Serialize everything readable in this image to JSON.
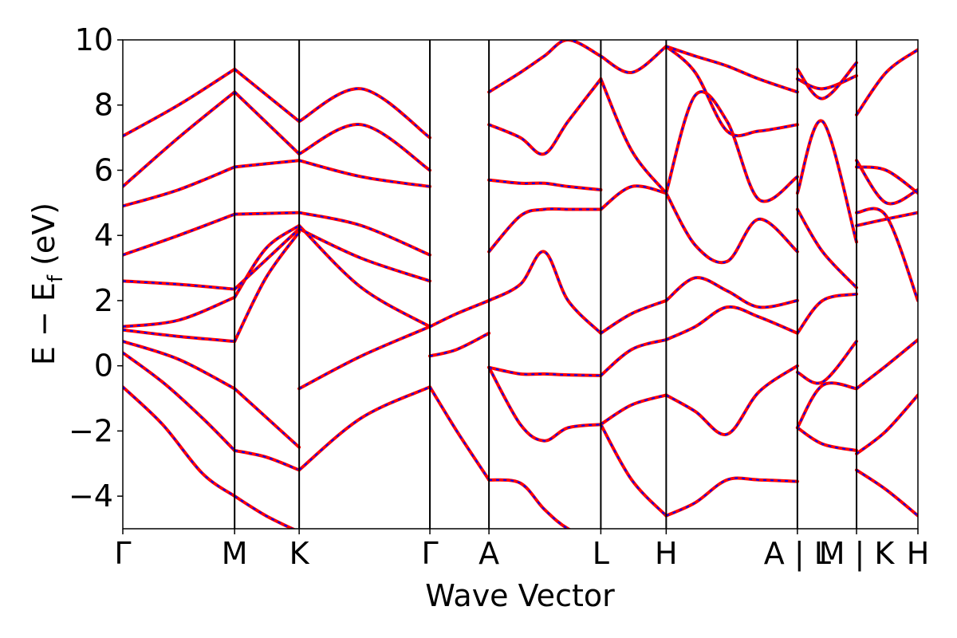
{
  "chart_data": {
    "type": "line",
    "title": "",
    "xlabel": "Wave Vector",
    "ylabel_parts": [
      "E",
      " − ",
      "E",
      "f",
      " (eV)"
    ],
    "ylim": [
      -5,
      10
    ],
    "yticks": [
      -4,
      -2,
      0,
      2,
      4,
      6,
      8,
      10
    ],
    "ytick_labels": [
      "−4",
      "−2",
      "0",
      "2",
      "4",
      "6",
      "8",
      "10"
    ],
    "xlim": [
      0,
      1
    ],
    "kpath": [
      {
        "label": "Γ",
        "x": 0.0
      },
      {
        "label": "M",
        "x": 0.1406
      },
      {
        "label": "K",
        "x": 0.2218
      },
      {
        "label": "Γ",
        "x": 0.3862
      },
      {
        "label": "A",
        "x": 0.4605
      },
      {
        "label": "L",
        "x": 0.6012
      },
      {
        "label": "H",
        "x": 0.6834
      },
      {
        "label": "A | L",
        "x": 0.8484
      },
      {
        "label": "M | K",
        "x": 0.9228
      },
      {
        "label": "H",
        "x": 1.0
      }
    ],
    "grid": false,
    "legend": "none",
    "colors": {
      "band_solid": "#ff0000",
      "band_dashed": "#0000ff",
      "segment_line": "#000000"
    },
    "series": [
      {
        "x": [
          0.0,
          0.05,
          0.1,
          0.1406
        ],
        "values": [
          -0.65,
          -1.8,
          -3.3,
          -4.0
        ]
      },
      {
        "x": [
          0.1406,
          0.18,
          0.2218
        ],
        "values": [
          -4.0,
          -4.6,
          -5.1
        ]
      },
      {
        "x": [
          0.0,
          0.05,
          0.1,
          0.1406
        ],
        "values": [
          0.4,
          -0.5,
          -1.6,
          -2.6
        ]
      },
      {
        "x": [
          0.1406,
          0.18,
          0.2218
        ],
        "values": [
          -2.6,
          -2.8,
          -3.2
        ]
      },
      {
        "x": [
          0.2218,
          0.3,
          0.3862
        ],
        "values": [
          -3.2,
          -1.6,
          -0.65
        ]
      },
      {
        "x": [
          0.0,
          0.07,
          0.1406
        ],
        "values": [
          0.75,
          0.2,
          -0.7
        ]
      },
      {
        "x": [
          0.1406,
          0.2218
        ],
        "values": [
          -0.7,
          -2.5
        ]
      },
      {
        "x": [
          0.0,
          0.07,
          0.1406
        ],
        "values": [
          1.1,
          0.9,
          0.75
        ]
      },
      {
        "x": [
          0.1406,
          0.18,
          0.2218
        ],
        "values": [
          0.75,
          2.7,
          4.1
        ]
      },
      {
        "x": [
          0.2218,
          0.3,
          0.3862
        ],
        "values": [
          -0.7,
          0.3,
          1.2
        ]
      },
      {
        "x": [
          0.0,
          0.07,
          0.1406
        ],
        "values": [
          1.2,
          1.4,
          2.1
        ]
      },
      {
        "x": [
          0.1406,
          0.18,
          0.2218
        ],
        "values": [
          2.1,
          3.6,
          4.3
        ]
      },
      {
        "x": [
          0.2218,
          0.3,
          0.3862
        ],
        "values": [
          4.3,
          2.4,
          1.2
        ]
      },
      {
        "x": [
          0.0,
          0.07,
          0.1406
        ],
        "values": [
          2.6,
          2.5,
          2.35
        ]
      },
      {
        "x": [
          0.1406,
          0.2218
        ],
        "values": [
          2.35,
          4.2
        ]
      },
      {
        "x": [
          0.2218,
          0.3,
          0.3862
        ],
        "values": [
          4.2,
          3.3,
          2.6
        ]
      },
      {
        "x": [
          0.0,
          0.07,
          0.1406
        ],
        "values": [
          3.4,
          4.0,
          4.65
        ]
      },
      {
        "x": [
          0.1406,
          0.2218
        ],
        "values": [
          4.65,
          4.7
        ]
      },
      {
        "x": [
          0.2218,
          0.3,
          0.3862
        ],
        "values": [
          4.7,
          4.3,
          3.4
        ]
      },
      {
        "x": [
          0.0,
          0.07,
          0.1406
        ],
        "values": [
          4.9,
          5.4,
          6.1
        ]
      },
      {
        "x": [
          0.1406,
          0.2218
        ],
        "values": [
          6.1,
          6.3
        ]
      },
      {
        "x": [
          0.2218,
          0.3,
          0.3862
        ],
        "values": [
          6.3,
          5.8,
          5.5
        ]
      },
      {
        "x": [
          0.0,
          0.07,
          0.1406
        ],
        "values": [
          5.5,
          7.0,
          8.4
        ]
      },
      {
        "x": [
          0.1406,
          0.2218
        ],
        "values": [
          8.4,
          6.5
        ]
      },
      {
        "x": [
          0.2218,
          0.3,
          0.3862
        ],
        "values": [
          6.5,
          7.4,
          6.0
        ]
      },
      {
        "x": [
          0.0,
          0.07,
          0.1406
        ],
        "values": [
          7.05,
          8.0,
          9.1
        ]
      },
      {
        "x": [
          0.1406,
          0.2218
        ],
        "values": [
          9.1,
          7.5
        ]
      },
      {
        "x": [
          0.2218,
          0.3,
          0.3862
        ],
        "values": [
          7.5,
          8.5,
          7.0
        ]
      },
      {
        "x": [
          0.3862,
          0.42,
          0.4605
        ],
        "values": [
          -0.65,
          -2.0,
          -3.5
        ]
      },
      {
        "x": [
          0.4605,
          0.5,
          0.53,
          0.56,
          0.6012
        ],
        "values": [
          -3.5,
          -3.6,
          -4.4,
          -5.0,
          -5.4
        ]
      },
      {
        "x": [
          0.3862,
          0.42,
          0.4605
        ],
        "values": [
          0.3,
          0.5,
          1.0
        ]
      },
      {
        "x": [
          0.3862,
          0.42,
          0.4605
        ],
        "values": [
          1.2,
          1.6,
          2.0
        ]
      },
      {
        "x": [
          0.4605,
          0.5,
          0.53,
          0.56,
          0.6012
        ],
        "values": [
          -0.05,
          -1.8,
          -2.3,
          -1.9,
          -1.8
        ]
      },
      {
        "x": [
          0.4605,
          0.5,
          0.53,
          0.56,
          0.6012
        ],
        "values": [
          -0.05,
          -0.25,
          -0.25,
          -0.28,
          -0.3
        ]
      },
      {
        "x": [
          0.4605,
          0.5,
          0.53,
          0.56,
          0.6012
        ],
        "values": [
          2.0,
          2.5,
          3.5,
          2.0,
          1.0
        ]
      },
      {
        "x": [
          0.4605,
          0.5,
          0.53,
          0.56,
          0.6012
        ],
        "values": [
          3.5,
          4.6,
          4.8,
          4.8,
          4.8
        ]
      },
      {
        "x": [
          0.4605,
          0.5,
          0.53,
          0.56,
          0.6012
        ],
        "values": [
          5.7,
          5.6,
          5.6,
          5.5,
          5.4
        ]
      },
      {
        "x": [
          0.4605,
          0.5,
          0.53,
          0.56,
          0.6012
        ],
        "values": [
          7.4,
          7.0,
          6.5,
          7.5,
          8.8
        ]
      },
      {
        "x": [
          0.4605,
          0.5,
          0.53,
          0.56,
          0.6012
        ],
        "values": [
          8.4,
          9.0,
          9.5,
          10.0,
          9.5
        ]
      },
      {
        "x": [
          0.6012,
          0.64,
          0.6834
        ],
        "values": [
          -1.8,
          -1.2,
          -0.9
        ]
      },
      {
        "x": [
          0.6012,
          0.64,
          0.6834
        ],
        "values": [
          -0.3,
          0.5,
          0.8
        ]
      },
      {
        "x": [
          0.6012,
          0.64,
          0.6834
        ],
        "values": [
          1.0,
          1.6,
          2.0
        ]
      },
      {
        "x": [
          0.6012,
          0.64,
          0.6834
        ],
        "values": [
          4.8,
          5.5,
          5.3
        ]
      },
      {
        "x": [
          0.6012,
          0.64,
          0.6834
        ],
        "values": [
          8.8,
          6.6,
          5.3
        ]
      },
      {
        "x": [
          0.6012,
          0.64,
          0.6834
        ],
        "values": [
          9.5,
          9.0,
          9.8
        ]
      },
      {
        "x": [
          0.6012,
          0.64,
          0.6834
        ],
        "values": [
          -1.8,
          -3.5,
          -4.6
        ]
      },
      {
        "x": [
          0.6834,
          0.72,
          0.76,
          0.8,
          0.8484
        ],
        "values": [
          -4.6,
          -4.2,
          -3.5,
          -3.5,
          -3.55
        ]
      },
      {
        "x": [
          0.6834,
          0.72,
          0.76,
          0.8,
          0.8484
        ],
        "values": [
          -0.9,
          -1.4,
          -2.1,
          -0.8,
          0.0
        ]
      },
      {
        "x": [
          0.6834,
          0.72,
          0.76,
          0.8,
          0.8484
        ],
        "values": [
          0.8,
          1.2,
          1.8,
          1.5,
          1.0
        ]
      },
      {
        "x": [
          0.6834,
          0.72,
          0.76,
          0.8,
          0.8484
        ],
        "values": [
          2.0,
          2.7,
          2.3,
          1.8,
          2.0
        ]
      },
      {
        "x": [
          0.6834,
          0.72,
          0.76,
          0.8,
          0.8484
        ],
        "values": [
          5.3,
          3.7,
          3.2,
          4.5,
          3.5
        ]
      },
      {
        "x": [
          0.6834,
          0.72,
          0.76,
          0.8,
          0.8484
        ],
        "values": [
          5.3,
          8.3,
          7.5,
          5.1,
          5.8
        ]
      },
      {
        "x": [
          0.6834,
          0.72,
          0.76,
          0.8,
          0.8484
        ],
        "values": [
          9.8,
          9.0,
          7.2,
          7.2,
          7.4
        ]
      },
      {
        "x": [
          0.6834,
          0.72,
          0.76,
          0.8,
          0.8484
        ],
        "values": [
          9.8,
          9.5,
          9.2,
          8.8,
          8.4
        ]
      },
      {
        "x": [
          0.8484,
          0.88,
          0.9228
        ],
        "values": [
          -1.9,
          -2.4,
          -2.6
        ]
      },
      {
        "x": [
          0.8484,
          0.88,
          0.9228
        ],
        "values": [
          -1.9,
          -0.6,
          -0.7
        ]
      },
      {
        "x": [
          0.8484,
          0.88,
          0.9228
        ],
        "values": [
          -0.2,
          -0.5,
          0.75
        ]
      },
      {
        "x": [
          0.8484,
          0.88,
          0.9228
        ],
        "values": [
          1.0,
          2.0,
          2.2
        ]
      },
      {
        "x": [
          0.8484,
          0.88,
          0.9228
        ],
        "values": [
          4.8,
          3.5,
          2.4
        ]
      },
      {
        "x": [
          0.8484,
          0.88,
          0.9228
        ],
        "values": [
          5.3,
          7.5,
          3.8
        ]
      },
      {
        "x": [
          0.8484,
          0.88,
          0.9228
        ],
        "values": [
          8.8,
          8.5,
          8.9
        ]
      },
      {
        "x": [
          0.8484,
          0.88,
          0.9228
        ],
        "values": [
          9.1,
          8.2,
          9.3
        ]
      },
      {
        "x": [
          0.9228,
          0.96,
          1.0
        ],
        "values": [
          -3.2,
          -3.8,
          -4.6
        ]
      },
      {
        "x": [
          0.9228,
          0.96,
          1.0
        ],
        "values": [
          -2.7,
          -2.0,
          -0.9
        ]
      },
      {
        "x": [
          0.9228,
          0.96,
          1.0
        ],
        "values": [
          -0.7,
          0.0,
          0.8
        ]
      },
      {
        "x": [
          0.9228,
          0.96,
          1.0
        ],
        "values": [
          4.3,
          4.5,
          4.7
        ]
      },
      {
        "x": [
          0.9228,
          0.96,
          1.0
        ],
        "values": [
          4.7,
          4.6,
          2.0
        ]
      },
      {
        "x": [
          0.9228,
          0.96,
          1.0
        ],
        "values": [
          6.3,
          5.0,
          5.4
        ]
      },
      {
        "x": [
          0.9228,
          0.96,
          1.0
        ],
        "values": [
          6.1,
          6.0,
          5.3
        ]
      },
      {
        "x": [
          0.9228,
          0.96,
          1.0
        ],
        "values": [
          7.7,
          9.0,
          9.7
        ]
      }
    ]
  }
}
